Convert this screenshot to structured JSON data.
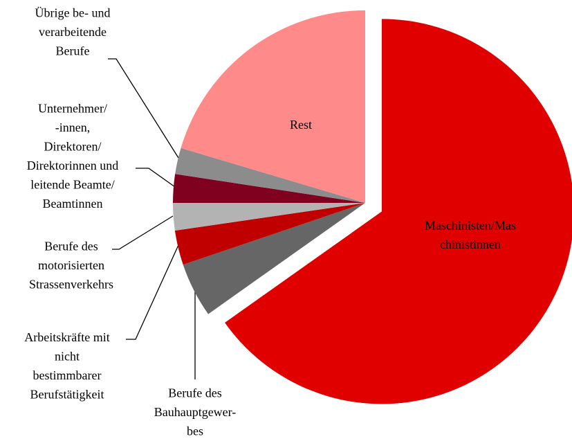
{
  "chart_data": {
    "type": "pie",
    "categories": [
      "Maschinisten/Mas\nchinistinnen",
      "Berufe des\nBauhauptgewer-\nbes",
      "Arbeitskräfte mit\nnicht\nbestimmbarer\nBerufstätigkeit",
      "Berufe des\nmotorisierten\nStrassenverkehrs",
      "Unternehmer/\n-innen,\nDirektoren/\nDirektorinnen und\nleitende Beamte/\nBeamtinnen",
      "Übrige be- und\nverarbeitende\nBerufe",
      "Rest"
    ],
    "values": [
      65.2,
      4.6,
      2.9,
      2.3,
      2.4,
      2.2,
      20.4
    ],
    "colors": [
      "#e00000",
      "#666666",
      "#c00000",
      "#b3b3b3",
      "#800020",
      "#8c8c8c",
      "#ff8a8a"
    ]
  }
}
